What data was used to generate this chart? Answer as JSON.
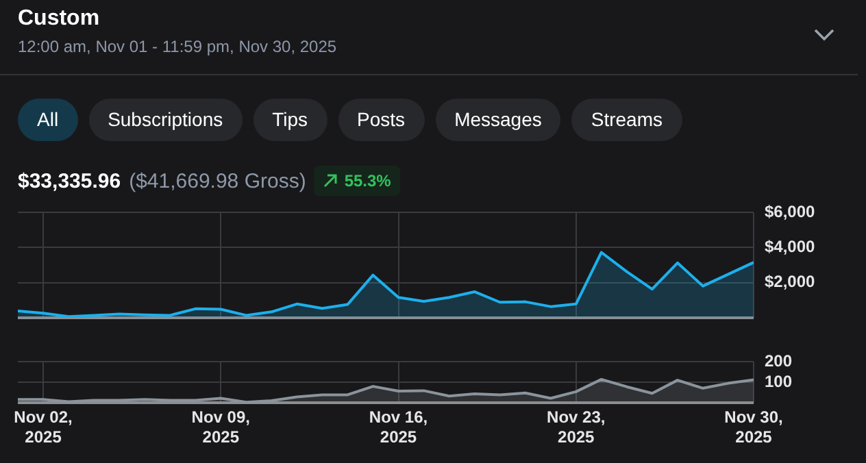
{
  "chart_data": [
    {
      "type": "other",
      "title": "Custom",
      "subtitle": "12:00 am, Nov 01 - 11:59 pm, Nov 30, 2025",
      "annotations": [
        "All",
        "Subscriptions",
        "Tips",
        "Posts",
        "Messages",
        "Streams",
        "$33,335.96",
        "($41,669.98 Gross)",
        "55.3%"
      ]
    },
    {
      "type": "area",
      "x": [
        "2025-11-01",
        "2025-11-02",
        "2025-11-03",
        "2025-11-04",
        "2025-11-05",
        "2025-11-06",
        "2025-11-07",
        "2025-11-08",
        "2025-11-09",
        "2025-11-10",
        "2025-11-11",
        "2025-11-12",
        "2025-11-13",
        "2025-11-14",
        "2025-11-15",
        "2025-11-16",
        "2025-11-17",
        "2025-11-18",
        "2025-11-19",
        "2025-11-20",
        "2025-11-21",
        "2025-11-22",
        "2025-11-23",
        "2025-11-24",
        "2025-11-25",
        "2025-11-26",
        "2025-11-27",
        "2025-11-28",
        "2025-11-29",
        "2025-11-30"
      ],
      "series": [
        {
          "color": "#1cb0ec",
          "values": [
            375,
            250,
            50,
            125,
            200,
            150,
            125,
            500,
            475,
            125,
            325,
            775,
            525,
            750,
            2425,
            1150,
            925,
            1150,
            1475,
            875,
            900,
            625,
            775,
            3725,
            2625,
            1625,
            3125,
            1800,
            2475,
            3150
          ]
        }
      ],
      "xlim": [
        "2025-11-01",
        "2025-11-30"
      ],
      "xticks": [
        {
          "value": "2025-11-02",
          "label": null
        },
        {
          "value": "2025-11-09",
          "label": null
        },
        {
          "value": "2025-11-16",
          "label": null
        },
        {
          "value": "2025-11-23",
          "label": null
        },
        {
          "value": "2025-11-30",
          "label": null
        }
      ],
      "ylim": [
        0,
        6000
      ],
      "yticks": [
        {
          "value": 0,
          "label": null
        },
        {
          "value": 2000,
          "label": "$2,000"
        },
        {
          "value": 4000,
          "label": "$4,000"
        },
        {
          "value": 6000,
          "label": "$6,000"
        }
      ],
      "grid": true,
      "tick_labels": "y",
      "marker": "none"
    },
    {
      "type": "area",
      "x": [
        "2025-11-01",
        "2025-11-02",
        "2025-11-03",
        "2025-11-04",
        "2025-11-05",
        "2025-11-06",
        "2025-11-07",
        "2025-11-08",
        "2025-11-09",
        "2025-11-10",
        "2025-11-11",
        "2025-11-12",
        "2025-11-13",
        "2025-11-14",
        "2025-11-15",
        "2025-11-16",
        "2025-11-17",
        "2025-11-18",
        "2025-11-19",
        "2025-11-20",
        "2025-11-21",
        "2025-11-22",
        "2025-11-23",
        "2025-11-24",
        "2025-11-25",
        "2025-11-26",
        "2025-11-27",
        "2025-11-28",
        "2025-11-29",
        "2025-11-30"
      ],
      "series": [
        {
          "color": "#8b949d",
          "values": [
            17,
            17,
            6,
            13,
            13,
            17,
            13,
            13,
            23,
            4,
            11,
            30,
            40,
            40,
            81,
            58,
            60,
            34,
            45,
            40,
            49,
            23,
            55,
            115,
            79,
            47,
            111,
            72,
            96,
            113
          ]
        }
      ],
      "xlim": [
        "2025-11-01",
        "2025-11-30"
      ],
      "xticks": [
        {
          "value": "2025-11-02",
          "label": "Nov 02, 2025"
        },
        {
          "value": "2025-11-09",
          "label": "Nov 09, 2025"
        },
        {
          "value": "2025-11-16",
          "label": "Nov 16, 2025"
        },
        {
          "value": "2025-11-23",
          "label": "Nov 23, 2025"
        },
        {
          "value": "2025-11-30",
          "label": "Nov 30, 2025"
        }
      ],
      "ylim": [
        0,
        200
      ],
      "yticks": [
        {
          "value": 0,
          "label": null
        },
        100,
        200
      ],
      "grid": true,
      "marker": "none"
    }
  ]
}
